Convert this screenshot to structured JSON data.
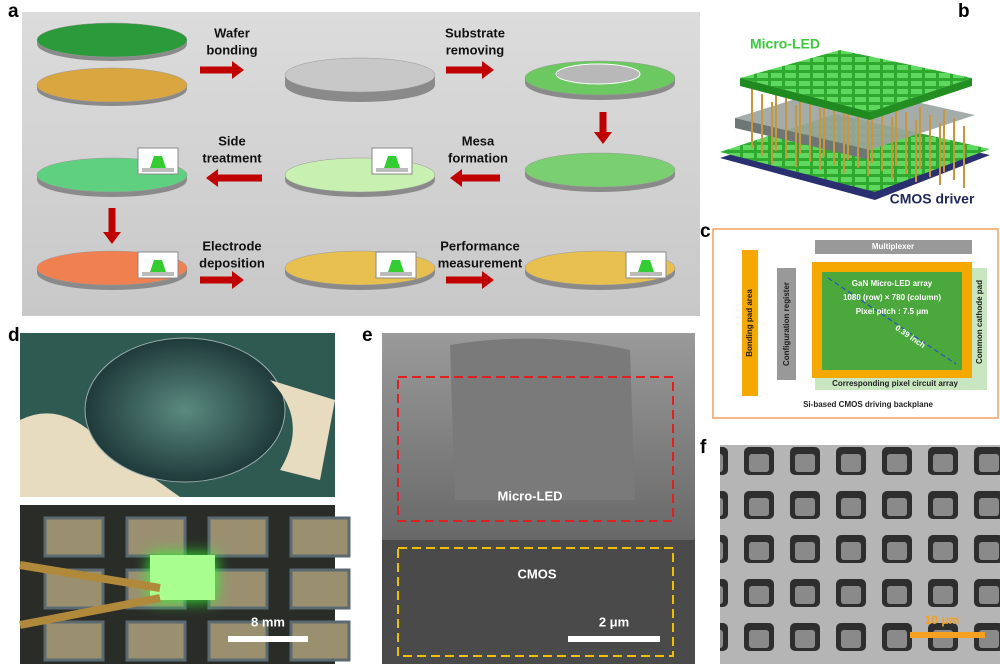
{
  "panels": {
    "a": {
      "label": "a",
      "steps": [
        {
          "lines": [
            "Wafer",
            "bonding"
          ]
        },
        {
          "lines": [
            "Substrate",
            "removing"
          ]
        },
        {
          "lines": [
            "Mesa",
            "formation"
          ]
        },
        {
          "lines": [
            "Side",
            "treatment"
          ]
        },
        {
          "lines": [
            "Electrode",
            "deposition"
          ]
        },
        {
          "lines": [
            "Performance",
            "measurement"
          ]
        }
      ]
    },
    "b": {
      "label": "b",
      "top_label": "Micro-LED",
      "bottom_label": "CMOS driver"
    },
    "c": {
      "label": "c",
      "multiplexer": "Multiplexer",
      "bonding_pad": "Bonding pad area",
      "config_register": "Configuration register",
      "array_title": "GaN Micro-LED array",
      "array_size": "1080 (row) × 780 (column)",
      "pixel_pitch": "Pixel pitch : 7.5 μm",
      "diagonal": "0.39 inch",
      "cathode_pad": "Common cathode pad",
      "pixel_circuit": "Corresponding pixel circuit array",
      "backplane": "Si-based CMOS driving backplane"
    },
    "d": {
      "label": "d",
      "scale_bar": "8 mm"
    },
    "e": {
      "label": "e",
      "region_top": "Micro-LED",
      "region_bottom": "CMOS",
      "scale_bar": "2 μm"
    },
    "f": {
      "label": "f",
      "scale_bar": "10 μm"
    }
  }
}
